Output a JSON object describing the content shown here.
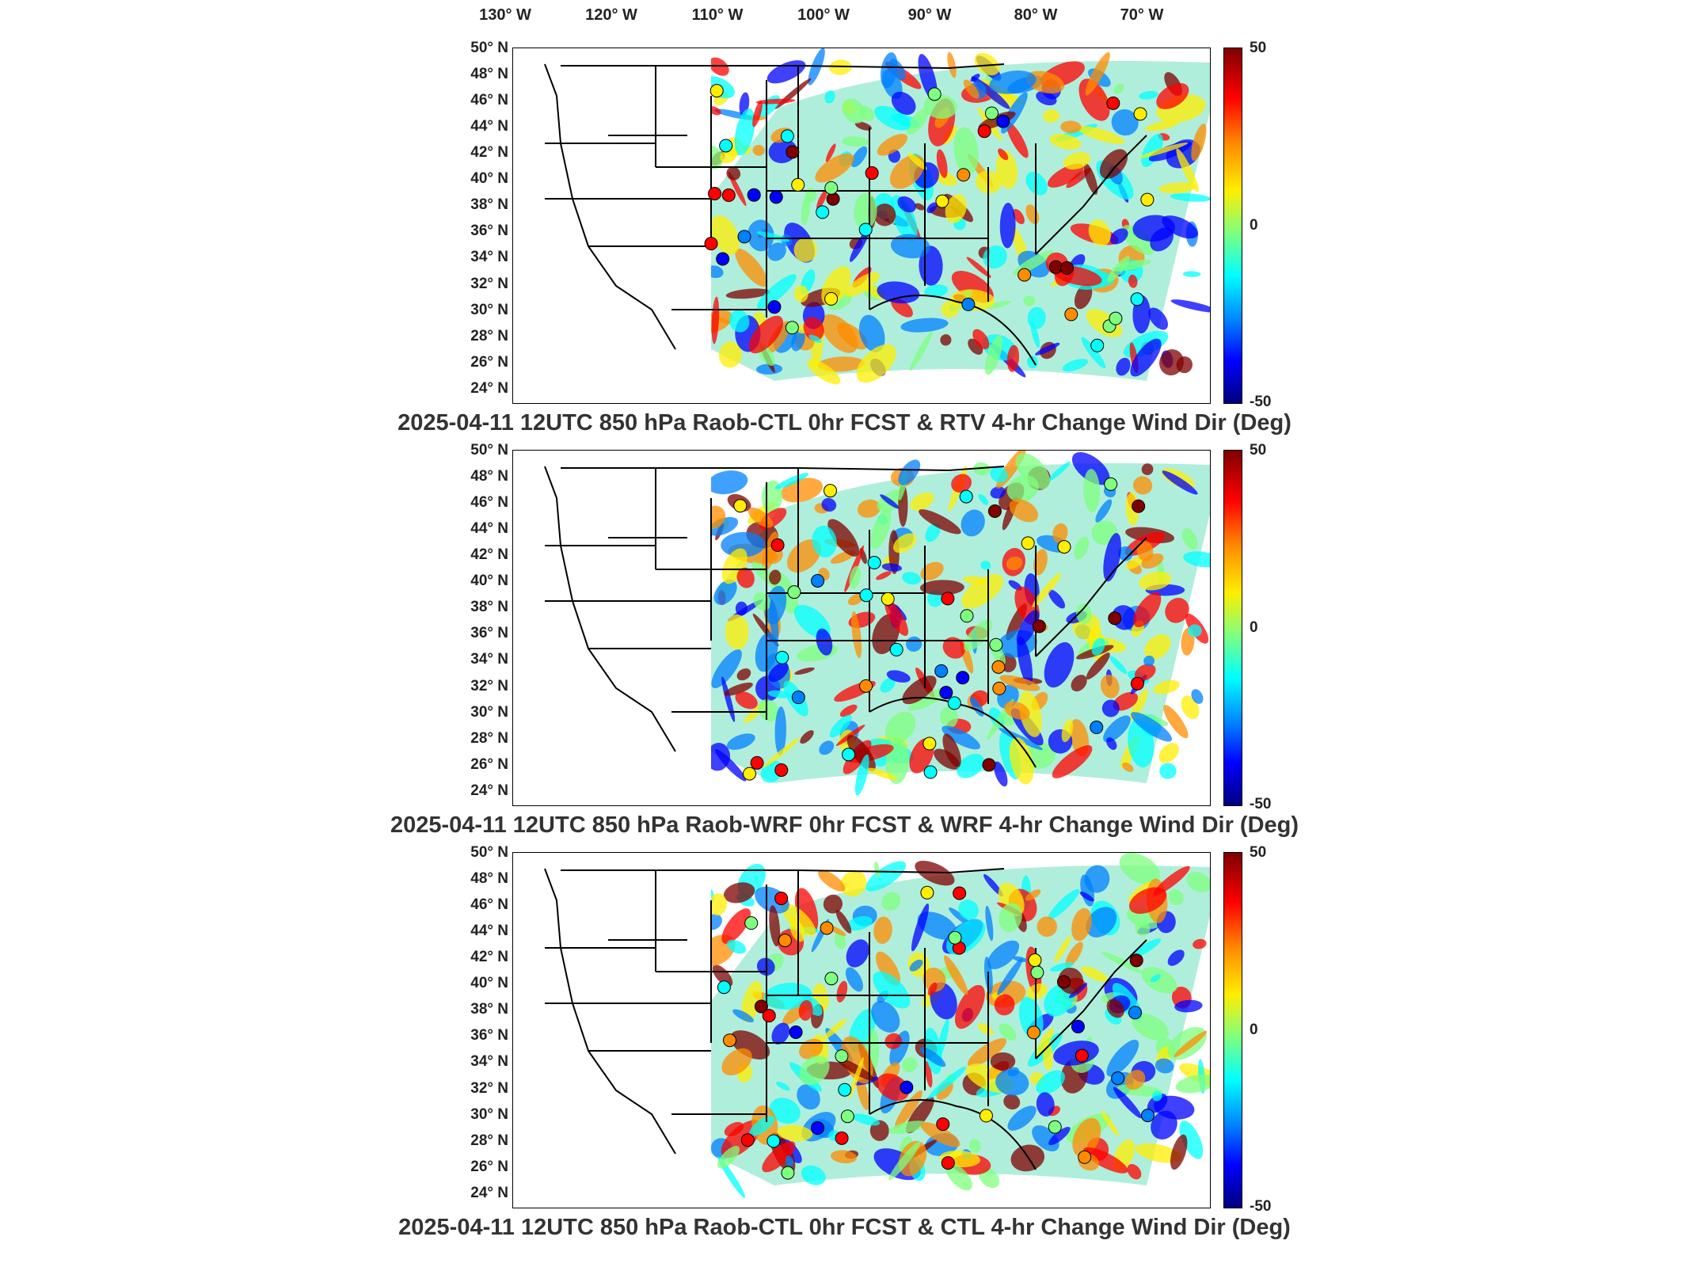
{
  "lon_labels": [
    "130° W",
    "120° W",
    "110° W",
    "100° W",
    "90° W",
    "80° W",
    "70° W"
  ],
  "lat_labels": [
    "50° N",
    "48° N",
    "46° N",
    "44° N",
    "42° N",
    "40° N",
    "38° N",
    "36° N",
    "34° N",
    "32° N",
    "30° N",
    "28° N",
    "26° N",
    "24° N"
  ],
  "colorbar": {
    "max_label": "50",
    "mid_label": "0",
    "min_label": "-50",
    "range": [
      -50,
      50
    ],
    "colormap": "jet"
  },
  "colors": {
    "frame": "#000000",
    "title": "#333333",
    "coast": "#000000"
  },
  "panels": [
    {
      "title": "2025-04-11 12UTC 850 hPa Raob-CTL 0hr FCST & RTV 4-hr Change Wind Dir (Deg)"
    },
    {
      "title": "2025-04-11 12UTC 850 hPa Raob-WRF 0hr FCST & WRF 4-hr Change Wind Dir (Deg)"
    },
    {
      "title": "2025-04-11 12UTC 850 hPa Raob-CTL 0hr FCST & CTL 4-hr Change Wind Dir (Deg)"
    }
  ]
}
